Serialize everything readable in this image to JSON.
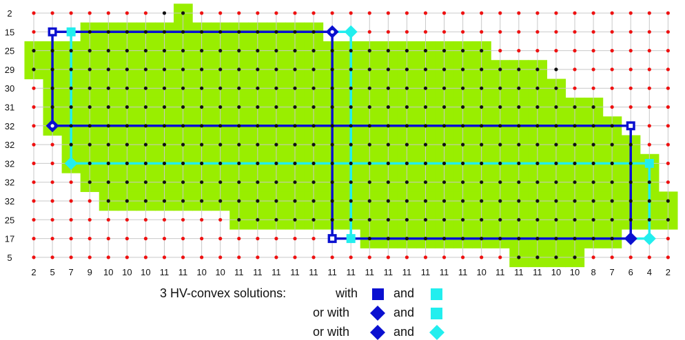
{
  "rows": [
    {
      "label": "2",
      "cells": "000000000000000000000000000000000000000000"
    },
    {
      "label": "15",
      "cells": "0000000000000000000000000000000000000000"
    },
    {
      "label": "25",
      "cells": "0"
    },
    {
      "label": "29",
      "cells": "0"
    },
    {
      "label": "30",
      "cells": "0"
    },
    {
      "label": "31",
      "cells": "0"
    },
    {
      "label": "32",
      "cells": "0"
    },
    {
      "label": "32",
      "cells": "0"
    },
    {
      "label": "32",
      "cells": "0"
    },
    {
      "label": "32",
      "cells": "0"
    },
    {
      "label": "32",
      "cells": "0"
    },
    {
      "label": "25",
      "cells": "0"
    },
    {
      "label": "17",
      "cells": "0"
    },
    {
      "label": "5",
      "cells": "0"
    }
  ],
  "col_labels": [
    "2",
    "5",
    "7",
    "9",
    "10",
    "10",
    "10",
    "11",
    "11",
    "10",
    "10",
    "11",
    "11",
    "11",
    "11",
    "11",
    "11",
    "11",
    "11",
    "11",
    "11",
    "11",
    "11",
    "11",
    "10",
    "11",
    "11",
    "11",
    "10",
    "10",
    "8",
    "7",
    "6",
    "4",
    "2"
  ],
  "green_rows": [
    [
      [
        8,
        8
      ]
    ],
    [
      [
        3,
        15
      ]
    ],
    [
      [
        0,
        24
      ]
    ],
    [
      [
        0,
        27
      ]
    ],
    [
      [
        1,
        28
      ]
    ],
    [
      [
        1,
        30
      ]
    ],
    [
      [
        1,
        31
      ]
    ],
    [
      [
        2,
        32
      ]
    ],
    [
      [
        2,
        33
      ]
    ],
    [
      [
        3,
        33
      ]
    ],
    [
      [
        4,
        34
      ]
    ],
    [
      [
        11,
        34
      ]
    ],
    [
      [
        18,
        31
      ]
    ],
    [
      [
        26,
        29
      ]
    ]
  ],
  "black_rows": [
    [
      [
        7,
        8
      ]
    ],
    [
      [
        3,
        15
      ]
    ],
    [
      [
        0,
        24
      ]
    ],
    [
      [
        0,
        26
      ],
      [
        26,
        28
      ]
    ],
    [
      [
        1,
        28
      ]
    ],
    [
      [
        1,
        30
      ]
    ],
    [
      [
        1,
        31
      ]
    ],
    [
      [
        2,
        32
      ]
    ],
    [
      [
        2,
        33
      ]
    ],
    [
      [
        3,
        33
      ]
    ],
    [
      [
        4,
        34
      ]
    ],
    [
      [
        11,
        34
      ]
    ],
    [
      [
        18,
        31
      ]
    ],
    [
      [
        26,
        29
      ]
    ]
  ],
  "legend": {
    "title": "3 HV-convex solutions:",
    "line1_word": "with",
    "line2_word": "or with",
    "line3_word": "or with",
    "and": "and"
  },
  "colors": {
    "green": "#99ee00",
    "red_dot": "#ee1111",
    "black_dot": "#111111",
    "grid": "#c8c8c8",
    "blue": "#0a10d0",
    "cyan": "#22eeee"
  }
}
